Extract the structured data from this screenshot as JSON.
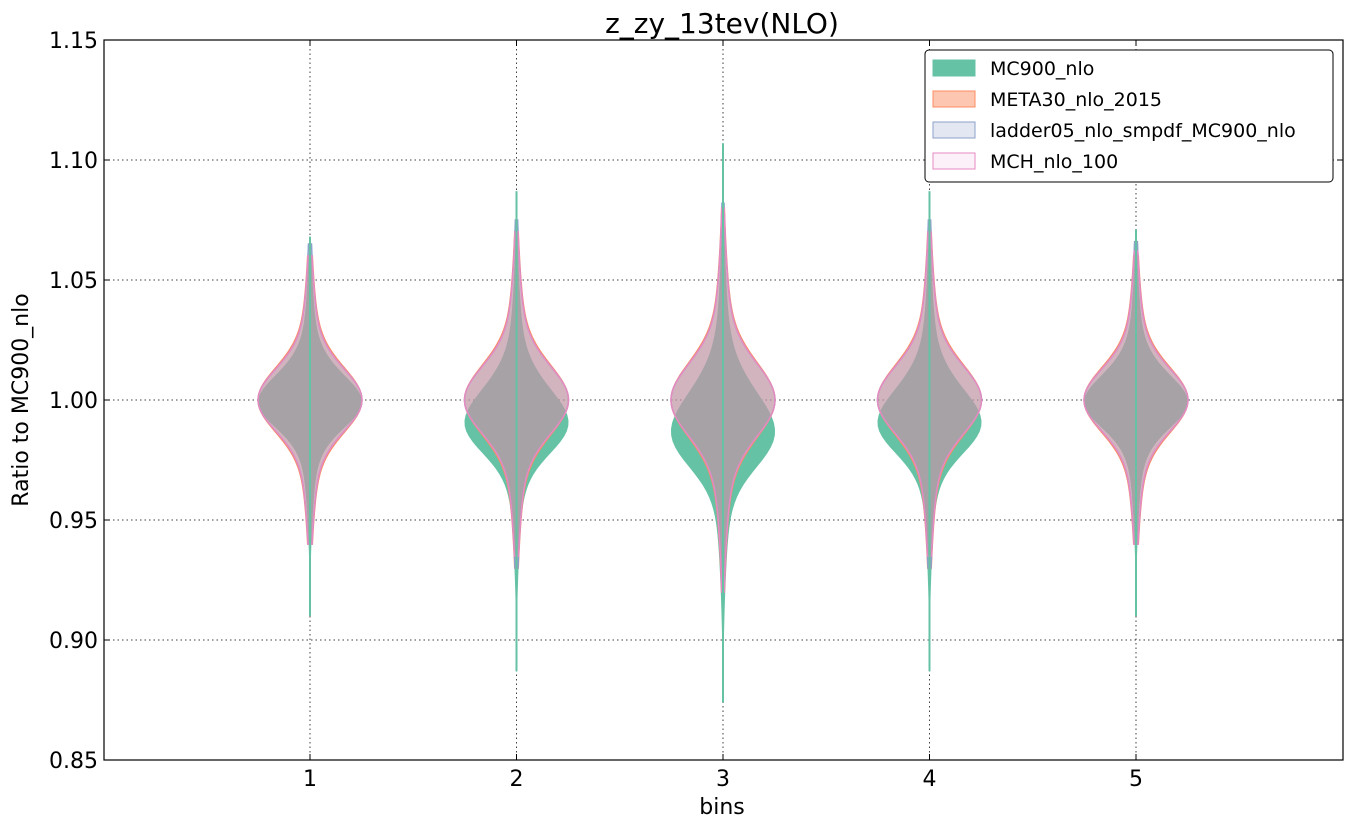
{
  "chart_data": {
    "type": "violin",
    "title": "z_zy_13tev(NLO)",
    "xlabel": "bins",
    "ylabel": "Ratio to MC900_nlo",
    "ylim": [
      0.85,
      1.15
    ],
    "yticks": [
      "0.85",
      "0.90",
      "0.95",
      "1.00",
      "1.05",
      "1.10",
      "1.15"
    ],
    "categories": [
      "1",
      "2",
      "3",
      "4",
      "5"
    ],
    "grid": true,
    "legend_position": "top-right",
    "series": [
      {
        "name": "MC900_nlo",
        "color": "#66c2a5",
        "style": "filled",
        "violins": [
          {
            "bin": 1,
            "min": 0.91,
            "max": 1.068,
            "center": 1.0,
            "spread": 0.012,
            "skew": -0.002
          },
          {
            "bin": 2,
            "min": 0.887,
            "max": 1.087,
            "center": 0.993,
            "spread": 0.014,
            "skew": -0.006
          },
          {
            "bin": 3,
            "min": 0.874,
            "max": 1.107,
            "center": 0.99,
            "spread": 0.016,
            "skew": -0.008
          },
          {
            "bin": 4,
            "min": 0.887,
            "max": 1.087,
            "center": 0.993,
            "spread": 0.014,
            "skew": -0.006
          },
          {
            "bin": 5,
            "min": 0.91,
            "max": 1.071,
            "center": 1.0,
            "spread": 0.012,
            "skew": -0.002
          }
        ]
      },
      {
        "name": "META30_nlo_2015",
        "color": "#fc8d62",
        "style": "filled",
        "violins": [
          {
            "bin": 1,
            "min": 0.94,
            "max": 1.06,
            "center": 1.0,
            "spread": 0.013,
            "skew": 0
          },
          {
            "bin": 2,
            "min": 0.93,
            "max": 1.07,
            "center": 1.0,
            "spread": 0.014,
            "skew": 0
          },
          {
            "bin": 3,
            "min": 0.92,
            "max": 1.08,
            "center": 1.0,
            "spread": 0.015,
            "skew": 0
          },
          {
            "bin": 4,
            "min": 0.93,
            "max": 1.07,
            "center": 1.0,
            "spread": 0.014,
            "skew": 0
          },
          {
            "bin": 5,
            "min": 0.94,
            "max": 1.06,
            "center": 1.0,
            "spread": 0.013,
            "skew": 0
          }
        ]
      },
      {
        "name": "ladder05_nlo_smpdf_MC900_nlo",
        "color": "#8da0cb",
        "style": "filled",
        "violins": [
          {
            "bin": 1,
            "min": 0.94,
            "max": 1.065,
            "center": 1.0,
            "spread": 0.0125,
            "skew": 0
          },
          {
            "bin": 2,
            "min": 0.93,
            "max": 1.075,
            "center": 1.0,
            "spread": 0.0135,
            "skew": 0
          },
          {
            "bin": 3,
            "min": 0.92,
            "max": 1.082,
            "center": 1.0,
            "spread": 0.0145,
            "skew": 0
          },
          {
            "bin": 4,
            "min": 0.93,
            "max": 1.075,
            "center": 1.0,
            "spread": 0.0135,
            "skew": 0
          },
          {
            "bin": 5,
            "min": 0.94,
            "max": 1.066,
            "center": 1.0,
            "spread": 0.0125,
            "skew": 0
          }
        ]
      },
      {
        "name": "MCH_nlo_100",
        "color": "#e78ac3",
        "style": "outline",
        "violins": [
          {
            "bin": 1,
            "min": 0.94,
            "max": 1.06,
            "center": 1.0,
            "spread": 0.0125,
            "skew": 0
          },
          {
            "bin": 2,
            "min": 0.935,
            "max": 1.07,
            "center": 1.0,
            "spread": 0.0135,
            "skew": 0
          },
          {
            "bin": 3,
            "min": 0.92,
            "max": 1.08,
            "center": 1.0,
            "spread": 0.0145,
            "skew": 0
          },
          {
            "bin": 4,
            "min": 0.935,
            "max": 1.07,
            "center": 1.0,
            "spread": 0.0135,
            "skew": 0
          },
          {
            "bin": 5,
            "min": 0.94,
            "max": 1.062,
            "center": 1.0,
            "spread": 0.0125,
            "skew": 0
          }
        ]
      }
    ]
  }
}
